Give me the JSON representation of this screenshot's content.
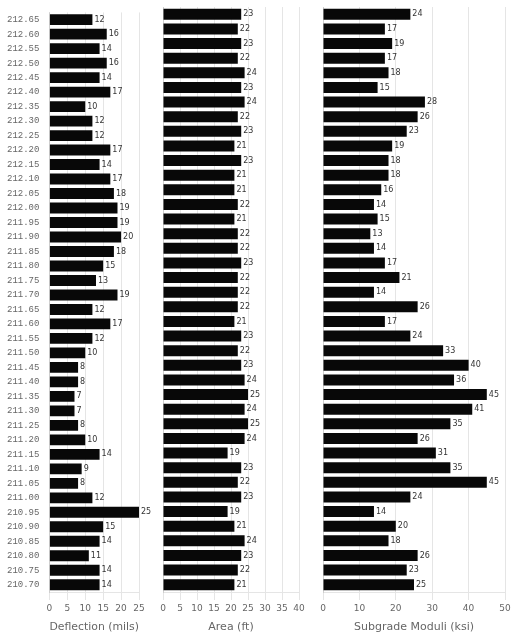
{
  "chart_data": [
    {
      "type": "bar",
      "orientation": "horizontal",
      "categories": [
        "212.65",
        "212.60",
        "212.55",
        "212.50",
        "212.45",
        "212.40",
        "212.35",
        "212.30",
        "212.25",
        "212.20",
        "212.15",
        "212.10",
        "212.05",
        "212.00",
        "211.95",
        "211.90",
        "211.85",
        "211.80",
        "211.75",
        "211.70",
        "211.65",
        "211.60",
        "211.55",
        "211.50",
        "211.45",
        "211.40",
        "211.35",
        "211.30",
        "211.25",
        "211.20",
        "211.15",
        "211.10",
        "211.05",
        "211.00",
        "210.95",
        "210.90",
        "210.85",
        "210.80",
        "210.75",
        "210.70"
      ],
      "values": [
        12,
        16,
        14,
        16,
        14,
        17,
        10,
        12,
        12,
        17,
        14,
        17,
        18,
        19,
        19,
        20,
        18,
        15,
        13,
        19,
        12,
        17,
        12,
        10,
        8,
        8,
        7,
        7,
        8,
        10,
        14,
        9,
        8,
        12,
        25,
        15,
        14,
        11,
        14,
        14
      ],
      "color": "#080808",
      "xlabel": "Deflection (mils)",
      "xlim": [
        0,
        25
      ],
      "xticks": [
        0,
        5,
        10,
        15,
        20,
        25
      ],
      "grid": true,
      "data_labels": true
    },
    {
      "type": "bar",
      "orientation": "horizontal",
      "categories": [
        "212.65",
        "212.60",
        "212.55",
        "212.50",
        "212.45",
        "212.40",
        "212.35",
        "212.30",
        "212.25",
        "212.20",
        "212.15",
        "212.10",
        "212.05",
        "212.00",
        "211.95",
        "211.90",
        "211.85",
        "211.80",
        "211.75",
        "211.70",
        "211.65",
        "211.60",
        "211.55",
        "211.50",
        "211.45",
        "211.40",
        "211.35",
        "211.30",
        "211.25",
        "211.20",
        "211.15",
        "211.10",
        "211.05",
        "211.00",
        "210.95",
        "210.90",
        "210.85",
        "210.80",
        "210.75",
        "210.70"
      ],
      "values": [
        23,
        22,
        23,
        22,
        24,
        23,
        24,
        22,
        23,
        21,
        23,
        21,
        21,
        22,
        21,
        22,
        22,
        23,
        22,
        22,
        22,
        21,
        23,
        22,
        23,
        24,
        25,
        24,
        25,
        24,
        19,
        23,
        22,
        23,
        19,
        21,
        24,
        23,
        22,
        21
      ],
      "color": "#080808",
      "xlabel": "Area (ft)",
      "xlim": [
        0,
        40
      ],
      "xticks": [
        0,
        5,
        10,
        15,
        20,
        25,
        30,
        35,
        40
      ],
      "grid": true,
      "data_labels": true,
      "tick_labels": "x"
    },
    {
      "type": "bar",
      "orientation": "horizontal",
      "categories": [
        "212.65",
        "212.60",
        "212.55",
        "212.50",
        "212.45",
        "212.40",
        "212.35",
        "212.30",
        "212.25",
        "212.20",
        "212.15",
        "212.10",
        "212.05",
        "212.00",
        "211.95",
        "211.90",
        "211.85",
        "211.80",
        "211.75",
        "211.70",
        "211.65",
        "211.60",
        "211.55",
        "211.50",
        "211.45",
        "211.40",
        "211.35",
        "211.30",
        "211.25",
        "211.20",
        "211.15",
        "211.10",
        "211.05",
        "211.00",
        "210.95",
        "210.90",
        "210.85",
        "210.80",
        "210.75",
        "210.70"
      ],
      "values": [
        24,
        17,
        19,
        17,
        18,
        15,
        28,
        26,
        23,
        19,
        18,
        18,
        16,
        14,
        15,
        13,
        14,
        17,
        21,
        14,
        26,
        17,
        24,
        33,
        40,
        36,
        45,
        41,
        35,
        26,
        31,
        35,
        45,
        24,
        14,
        20,
        18,
        26,
        23,
        25
      ],
      "color": "#080808",
      "xlabel": "Subgrade Moduli (ksi)",
      "xlim": [
        0,
        50
      ],
      "xticks": [
        0,
        10,
        20,
        30,
        40,
        50
      ],
      "grid": true,
      "data_labels": true,
      "tick_labels": "x"
    }
  ]
}
